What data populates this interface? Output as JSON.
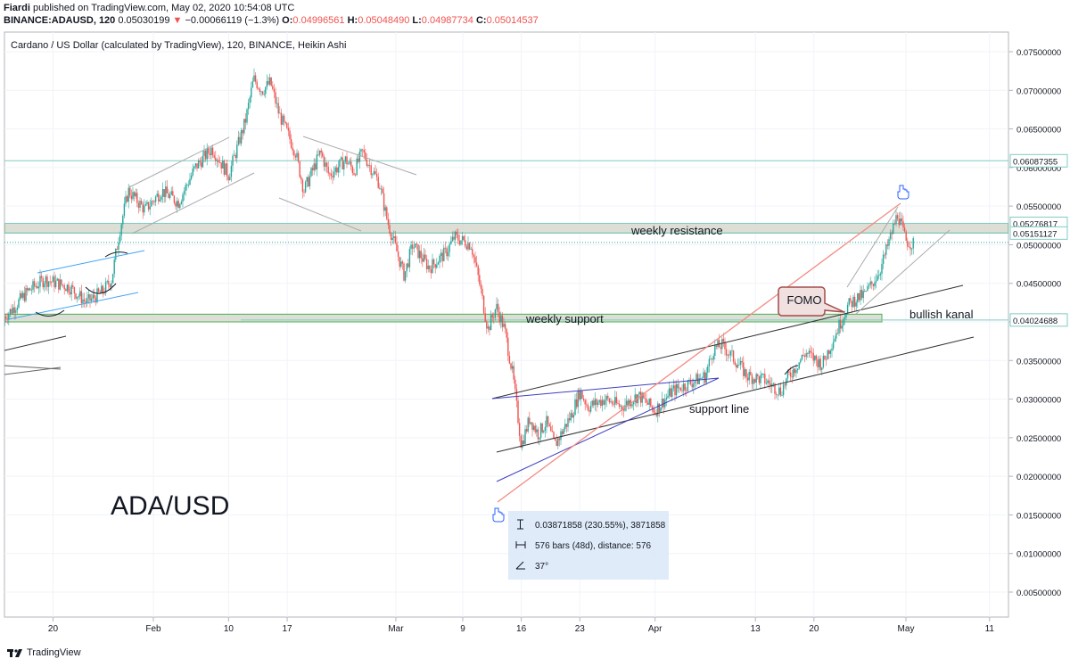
{
  "header": {
    "author": "Fiardi",
    "published_text": " published on TradingView.com, May 02, 2020 10:54:08 UTC",
    "symbol": "BINANCE:ADAUSD, 120",
    "last": "0.05030199",
    "change": "−0.00066119 (−1.3%)",
    "o_label": "O:",
    "o_value": "0.04996561",
    "h_label": "H:",
    "h_value": "0.05048490",
    "l_label": "L:",
    "l_value": "0.04987734",
    "c_label": "C:",
    "c_value": "0.05014537"
  },
  "footer": {
    "brand": "TradingView"
  },
  "chart_data": {
    "type": "candlestick",
    "title": "Cardano / US Dollar (calculated by TradingView), 120, BINANCE, Heikin Ashi",
    "ylim": [
      0.001,
      0.078
    ],
    "y_ticks": [
      "0.07500000",
      "0.07000000",
      "0.06500000",
      "0.06000000",
      "0.05500000",
      "0.05000000",
      "0.04500000",
      "0.04000000",
      "0.03500000",
      "0.03000000",
      "0.02500000",
      "0.02000000",
      "0.01500000",
      "0.01000000",
      "0.00500000"
    ],
    "x_ticks": [
      "20",
      "Feb",
      "10",
      "17",
      "Mar",
      "9",
      "16",
      "23",
      "Apr",
      "13",
      "20",
      "May",
      "11"
    ],
    "price_labels": [
      {
        "value": 0.06087355,
        "text": "0.06087355"
      },
      {
        "value": 0.05276817,
        "text": "0.05276817"
      },
      {
        "value": 0.05151127,
        "text": "0.05151127"
      },
      {
        "value": 0.04024688,
        "text": "0.04024688"
      }
    ],
    "price_path": [
      {
        "date": "2020-01-13",
        "price": 0.0395
      },
      {
        "date": "2020-01-15",
        "price": 0.0415
      },
      {
        "date": "2020-01-17",
        "price": 0.044
      },
      {
        "date": "2020-01-19",
        "price": 0.0455
      },
      {
        "date": "2020-01-22",
        "price": 0.0445
      },
      {
        "date": "2020-01-24",
        "price": 0.0425
      },
      {
        "date": "2020-01-26",
        "price": 0.044
      },
      {
        "date": "2020-01-27",
        "price": 0.0455
      },
      {
        "date": "2020-01-28",
        "price": 0.052
      },
      {
        "date": "2020-01-29",
        "price": 0.057
      },
      {
        "date": "2020-01-31",
        "price": 0.0545
      },
      {
        "date": "2020-02-02",
        "price": 0.057
      },
      {
        "date": "2020-02-04",
        "price": 0.0555
      },
      {
        "date": "2020-02-06",
        "price": 0.06
      },
      {
        "date": "2020-02-08",
        "price": 0.0625
      },
      {
        "date": "2020-02-10",
        "price": 0.059
      },
      {
        "date": "2020-02-12",
        "price": 0.066
      },
      {
        "date": "2020-02-13",
        "price": 0.0715
      },
      {
        "date": "2020-02-14",
        "price": 0.07
      },
      {
        "date": "2020-02-15",
        "price": 0.071
      },
      {
        "date": "2020-02-16",
        "price": 0.067
      },
      {
        "date": "2020-02-18",
        "price": 0.062
      },
      {
        "date": "2020-02-19",
        "price": 0.057
      },
      {
        "date": "2020-02-21",
        "price": 0.062
      },
      {
        "date": "2020-02-22",
        "price": 0.059
      },
      {
        "date": "2020-02-24",
        "price": 0.061
      },
      {
        "date": "2020-02-25",
        "price": 0.0595
      },
      {
        "date": "2020-02-26",
        "price": 0.062
      },
      {
        "date": "2020-02-28",
        "price": 0.058
      },
      {
        "date": "2020-02-29",
        "price": 0.053
      },
      {
        "date": "2020-03-02",
        "price": 0.046
      },
      {
        "date": "2020-03-03",
        "price": 0.05
      },
      {
        "date": "2020-03-05",
        "price": 0.047
      },
      {
        "date": "2020-03-07",
        "price": 0.049
      },
      {
        "date": "2020-03-08",
        "price": 0.051
      },
      {
        "date": "2020-03-10",
        "price": 0.05
      },
      {
        "date": "2020-03-11",
        "price": 0.045
      },
      {
        "date": "2020-03-12",
        "price": 0.039
      },
      {
        "date": "2020-03-13",
        "price": 0.042
      },
      {
        "date": "2020-03-14",
        "price": 0.039
      },
      {
        "date": "2020-03-15",
        "price": 0.033
      },
      {
        "date": "2020-03-16",
        "price": 0.024
      },
      {
        "date": "2020-03-17",
        "price": 0.0275
      },
      {
        "date": "2020-03-18",
        "price": 0.0255
      },
      {
        "date": "2020-03-19",
        "price": 0.027
      },
      {
        "date": "2020-03-20",
        "price": 0.024
      },
      {
        "date": "2020-03-22",
        "price": 0.028
      },
      {
        "date": "2020-03-23",
        "price": 0.031
      },
      {
        "date": "2020-03-24",
        "price": 0.029
      },
      {
        "date": "2020-03-26",
        "price": 0.03
      },
      {
        "date": "2020-03-28",
        "price": 0.029
      },
      {
        "date": "2020-03-30",
        "price": 0.0305
      },
      {
        "date": "2020-04-01",
        "price": 0.0285
      },
      {
        "date": "2020-04-03",
        "price": 0.031
      },
      {
        "date": "2020-04-05",
        "price": 0.032
      },
      {
        "date": "2020-04-07",
        "price": 0.033
      },
      {
        "date": "2020-04-08",
        "price": 0.0365
      },
      {
        "date": "2020-04-09",
        "price": 0.037
      },
      {
        "date": "2020-04-11",
        "price": 0.0345
      },
      {
        "date": "2020-04-12",
        "price": 0.033
      },
      {
        "date": "2020-04-14",
        "price": 0.0325
      },
      {
        "date": "2020-04-16",
        "price": 0.031
      },
      {
        "date": "2020-04-17",
        "price": 0.033
      },
      {
        "date": "2020-04-19",
        "price": 0.036
      },
      {
        "date": "2020-04-21",
        "price": 0.0345
      },
      {
        "date": "2020-04-22",
        "price": 0.037
      },
      {
        "date": "2020-04-24",
        "price": 0.042
      },
      {
        "date": "2020-04-25",
        "price": 0.043
      },
      {
        "date": "2020-04-26",
        "price": 0.0435
      },
      {
        "date": "2020-04-27",
        "price": 0.045
      },
      {
        "date": "2020-04-28",
        "price": 0.047
      },
      {
        "date": "2020-04-29",
        "price": 0.0505
      },
      {
        "date": "2020-04-30",
        "price": 0.054
      },
      {
        "date": "2020-05-01",
        "price": 0.0505
      },
      {
        "date": "2020-05-02",
        "price": 0.05
      }
    ],
    "zones": [
      {
        "name": "weekly resistance",
        "low": 0.05151127,
        "high": 0.05276817
      },
      {
        "name": "weekly support",
        "low": 0.04,
        "high": 0.041
      }
    ],
    "annotations": {
      "big_label": "ADA/USD",
      "resistance": "weekly resistance",
      "support_zone": "weekly support",
      "bullish": "bullish kanal",
      "support_line": "support line",
      "fomo": "FOMO"
    },
    "measure_box": {
      "range": "0.03871858 (230.55%), 3871858",
      "bars": "576 bars (48d), distance: 576",
      "angle": "37°"
    },
    "colors": {
      "up": "#26a69a",
      "down": "#ef5350",
      "zone_fill": "#d9dcd2",
      "zone_border": "#4caf50",
      "price_line": "#b2dfdb",
      "trend_line": "#333333",
      "triangle": "#3f3fbf",
      "measure_line": "#f28b82",
      "measure_box_bg": "#dbe9f7"
    }
  }
}
